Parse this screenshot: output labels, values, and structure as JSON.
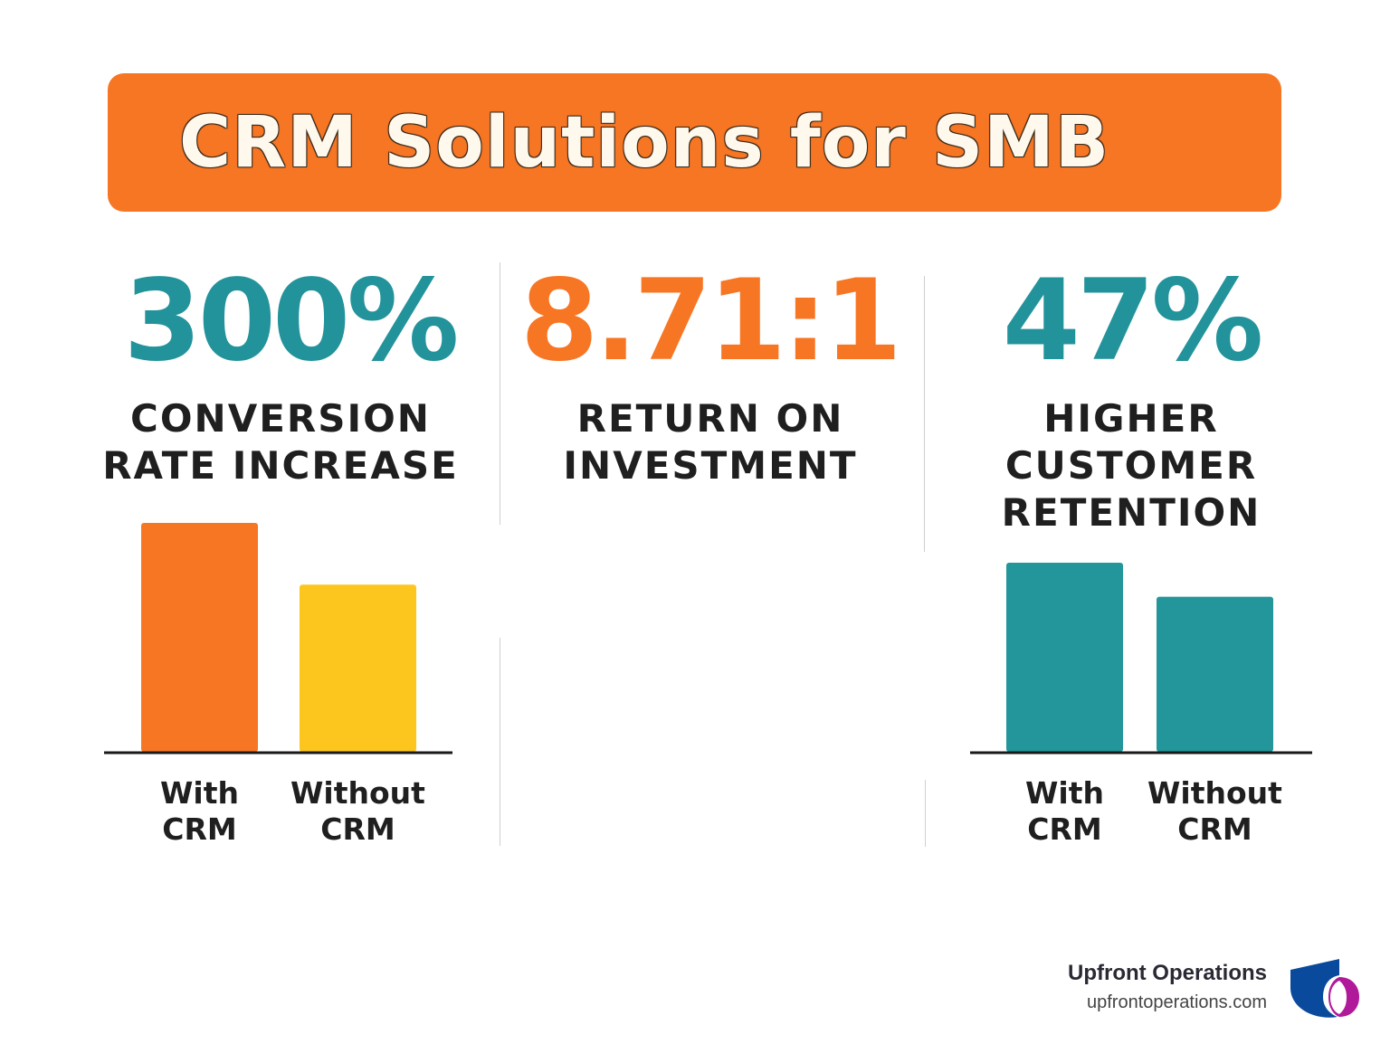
{
  "title": "CRM Solutions for SMB",
  "stats": [
    {
      "value": "300%",
      "caption": [
        "CONVERSION",
        "RATE INCREASE"
      ]
    },
    {
      "value": "8.71:1",
      "caption": [
        "RETURN ON",
        "INVESTMENT"
      ]
    },
    {
      "value": "47%",
      "caption": [
        "HIGHER",
        "CUSTOMER",
        "RETENTION"
      ]
    }
  ],
  "chart_data": [
    {
      "type": "bar",
      "categories": [
        [
          "With",
          "CRM"
        ],
        [
          "Without",
          "CRM"
        ]
      ],
      "values": [
        100,
        73
      ],
      "colors": [
        "#f77624",
        "#fdc61f"
      ],
      "axis_color": "#1a1a1a",
      "grid": false
    },
    {
      "type": "bar",
      "categories": [
        [
          "With",
          "CRM"
        ],
        [
          "Without",
          "CRM"
        ]
      ],
      "values": [
        100,
        82
      ],
      "colors": [
        "#22969a",
        "#22969a"
      ],
      "axis_color": "#1a1a1a",
      "grid": false
    }
  ],
  "brand": {
    "name": "Upfront Operations",
    "url": "upfrontoperations.com",
    "logo_icon": "upfront-operations-logo-icon",
    "colors": {
      "orange": "#f77624",
      "teal": "#23939b",
      "yellow": "#fdc61f",
      "logo_blue": "#0a4a9c",
      "logo_magenta": "#b01a9a"
    }
  }
}
